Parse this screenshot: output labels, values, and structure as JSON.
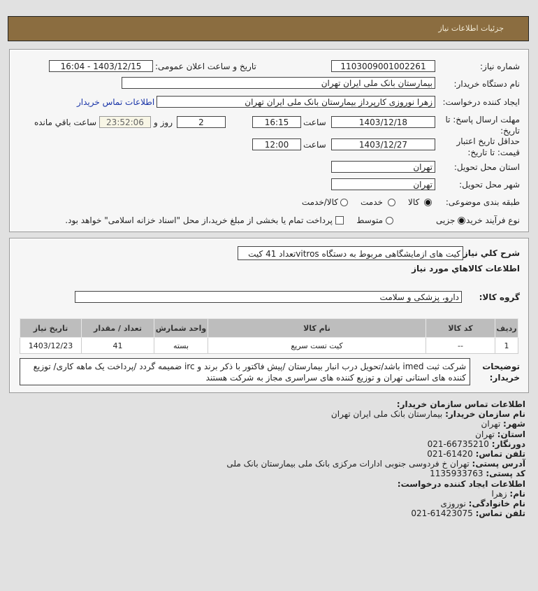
{
  "header": {
    "title": "جزئیات اطلاعات نیاز"
  },
  "form": {
    "need_number_label": "شماره نیاز:",
    "need_number": "1103009001002261",
    "announce_label": "تاریخ و ساعت اعلان عمومی:",
    "announce_value": "1403/12/15 - 16:04",
    "buyer_label": "نام دستگاه خریدار:",
    "buyer_value": "بیمارستان بانک ملی ایران تهران",
    "requester_label": "ایجاد کننده درخواست:",
    "requester_value": "زهرا نوروزی کارپرداز بیمارستان بانک ملی ایران تهران",
    "contact_link": "اطلاعات تماس خریدار",
    "deadline_label": "مهلت ارسال پاسخ: تا تاریخ:",
    "deadline_date": "1403/12/18",
    "time_label": "ساعت",
    "deadline_time": "16:15",
    "days": "2",
    "days_label": "روز و",
    "remaining": "23:52:06",
    "remaining_label": "ساعت باقي مانده",
    "validity_label": "حداقل تاریخ اعتبار قیمت: تا تاریخ:",
    "validity_date": "1403/12/27",
    "validity_time": "12:00",
    "province_label": "استان محل تحویل:",
    "province": "تهران",
    "city_label": "شهر محل تحویل:",
    "city": "تهران",
    "category_label": "طبقه بندی موضوعی:",
    "category_options": [
      "کالا",
      "خدمت",
      "کالا/خدمت"
    ],
    "category_selected": "کالا",
    "process_label": "نوع فرآیند خرید :",
    "process_options": [
      "جزیی",
      "متوسط"
    ],
    "process_selected": "جزیی",
    "payment_note": "پرداخت تمام یا بخشی از مبلغ خرید،از محل \"اسناد خزانه اسلامی\" خواهد بود.",
    "payment_checked": false
  },
  "details": {
    "summary_label": "شرح کلي نیاز:",
    "summary": "کیت های ازمایشگاهی مربوط به دستگاه vitrosتعداد 41 کیت",
    "goods_heading": "اطلاعات کالاهاي مورد نیاز",
    "group_label": "گروه کالا:",
    "group": "دارو، پزشکی و سلامت",
    "table": {
      "headers": [
        "ردیف",
        "کد کالا",
        "نام کالا",
        "واحد شمارش",
        "تعداد / مقدار",
        "تاریخ نیاز"
      ],
      "rows": [
        [
          "1",
          "--",
          "کیت تست سریع",
          "بسته",
          "41",
          "1403/12/23"
        ]
      ]
    },
    "desc_label": "توضیحات خریدار:",
    "desc": "شرکت ثبت imed باشد/تحویل درب انبار بیمارستان /پیش فاکتور با ذکر برند و irc ضمیمه گردد /پرداخت یک ماهه کاری/ توزیع کننده های استانی تهران و توزیع کننده های سراسری مجاز به شرکت هستند"
  },
  "contact": {
    "heading": "اطلاعات تماس سازمان خریدار:",
    "org_label": "نام سازمان خریدار:",
    "org": "بیمارستان بانک ملی ایران تهران",
    "city_label": "شهر:",
    "city": "تهران",
    "province_label": "استان:",
    "province": "تهران",
    "fax_label": "دورنگار:",
    "fax": "66735210-021",
    "phone_label": "تلفن تماس:",
    "phone": "61420-021",
    "address_label": "آدرس پستی:",
    "address": "تهران خ فردوسی جنوبی ادارات مرکزی بانک ملی بیمارستان بانک ملی",
    "postal_label": "کد پستی:",
    "postal": "1135933763",
    "creator_heading": "اطلاعات ایجاد کننده درخواست:",
    "name_label": "نام:",
    "name": "زهرا",
    "family_label": "نام خانوادگی:",
    "family": "نوروزی",
    "creator_phone_label": "تلفن تماس:",
    "creator_phone": "61423075-021"
  }
}
